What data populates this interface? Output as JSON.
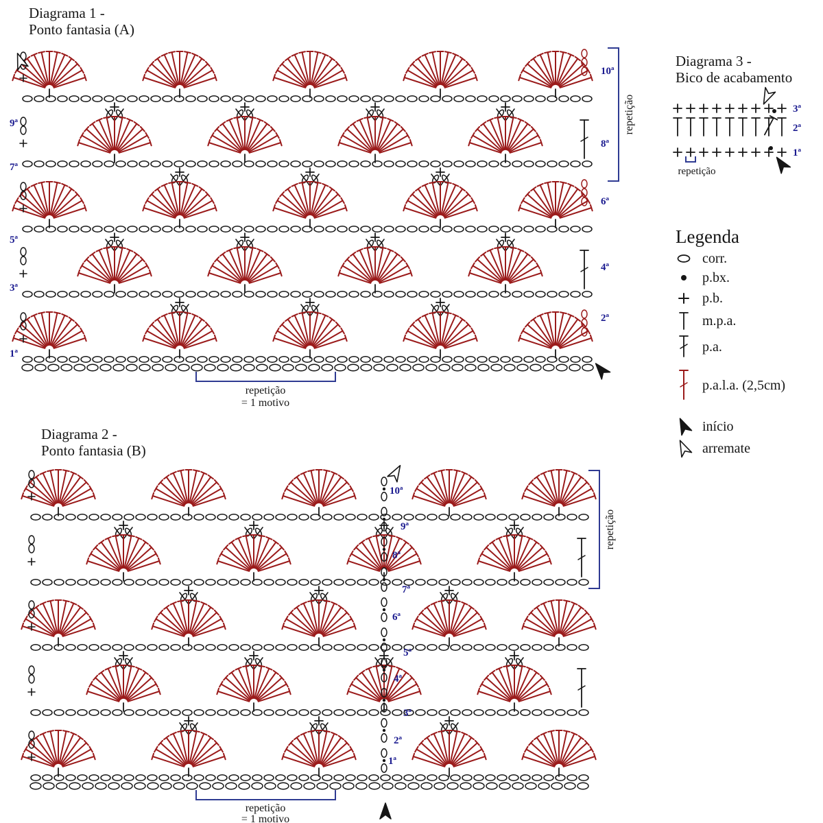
{
  "diagram1": {
    "title_line1": "Diagrama 1 -",
    "title_line2": "Ponto fantasia (A)",
    "left_row_labels": [
      "9ª",
      "7ª",
      "5ª",
      "3ª",
      "1ª"
    ],
    "right_row_labels": [
      "10ª",
      "8ª",
      "6ª",
      "4ª",
      "2ª"
    ],
    "repeat_bracket_label": "repetição",
    "bottom_repeat_line1": "repetição",
    "bottom_repeat_line2": "= 1 motivo"
  },
  "diagram2": {
    "title_line1": "Diagrama 2 -",
    "title_line2": "Ponto fantasia (B)",
    "middle_row_labels": [
      "10ª",
      "9ª",
      "8ª",
      "7ª",
      "6ª",
      "5ª",
      "4ª",
      "3ª",
      "2ª",
      "1ª"
    ],
    "repeat_bracket_label": "repetição",
    "bottom_repeat_line1": "repetição",
    "bottom_repeat_line2": "= 1 motivo"
  },
  "diagram3": {
    "title_line1": "Diagrama 3 -",
    "title_line2": "Bico de acabamento",
    "row_labels": [
      "3ª",
      "2ª",
      "1ª"
    ],
    "repeat_label": "repetição"
  },
  "legend": {
    "title": "Legenda",
    "items": [
      {
        "symbol": "chain",
        "label": "corr."
      },
      {
        "symbol": "slip-stitch",
        "label": "p.bx."
      },
      {
        "symbol": "single-crochet",
        "label": "p.b."
      },
      {
        "symbol": "half-double-crochet",
        "label": "m.p.a."
      },
      {
        "symbol": "double-crochet",
        "label": "p.a."
      },
      {
        "symbol": "long-double-crochet",
        "label": "p.a.l.a. (2,5cm)"
      },
      {
        "symbol": "start-arrow",
        "label": "início"
      },
      {
        "symbol": "finish-arrow",
        "label": "arremate"
      }
    ]
  },
  "colors": {
    "fan_red": "#9a1a1a",
    "label_blue": "#1a1a8f",
    "bracket_blue": "#2e3a92",
    "ink": "#161616"
  }
}
